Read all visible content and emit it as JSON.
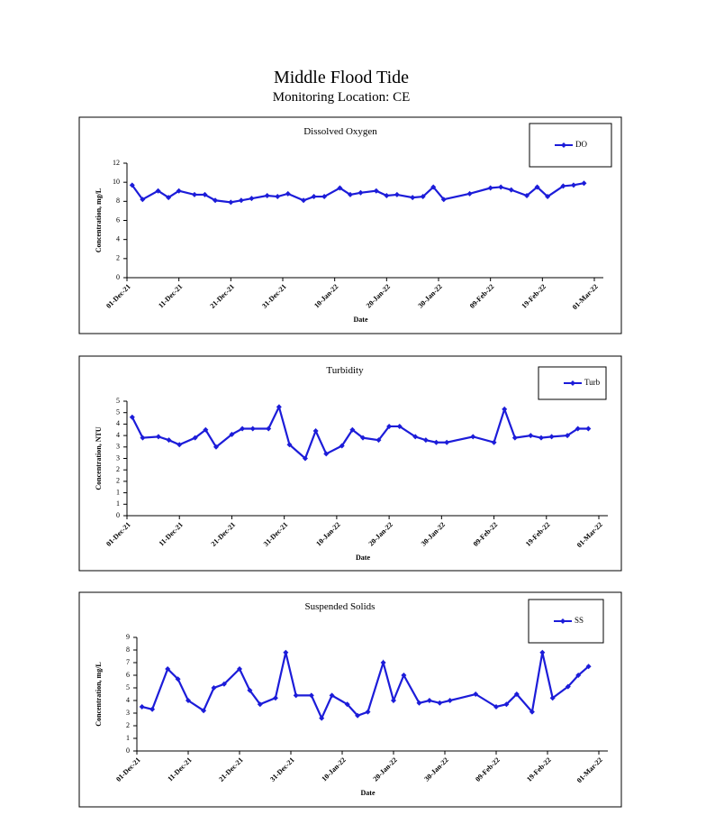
{
  "title": "Middle Flood Tide",
  "subtitle": "Monitoring Location: CE",
  "chart_data": [
    {
      "type": "line",
      "title": "Dissolved Oxygen",
      "xlabel": "Date",
      "ylabel": "Concentration, mg/L",
      "legend": "upper right",
      "grid": false,
      "x": [
        "2021-12-02",
        "2021-12-04",
        "2021-12-07",
        "2021-12-09",
        "2021-12-11",
        "2021-12-14",
        "2021-12-16",
        "2021-12-18",
        "2021-12-21",
        "2021-12-23",
        "2021-12-25",
        "2021-12-28",
        "2021-12-30",
        "2022-01-01",
        "2022-01-04",
        "2022-01-06",
        "2022-01-08",
        "2022-01-11",
        "2022-01-13",
        "2022-01-15",
        "2022-01-18",
        "2022-01-20",
        "2022-01-22",
        "2022-01-25",
        "2022-01-27",
        "2022-01-29",
        "2022-01-31",
        "2022-02-05",
        "2022-02-09",
        "2022-02-11",
        "2022-02-13",
        "2022-02-16",
        "2022-02-18",
        "2022-02-20",
        "2022-02-23",
        "2022-02-25",
        "2022-02-27"
      ],
      "series": [
        {
          "name": "DO",
          "color": "#1c1cd9",
          "values": [
            9.7,
            8.2,
            9.1,
            8.4,
            9.1,
            8.7,
            8.7,
            8.1,
            7.9,
            8.1,
            8.3,
            8.6,
            8.5,
            8.8,
            8.1,
            8.5,
            8.5,
            9.4,
            8.7,
            8.9,
            9.1,
            8.6,
            8.7,
            8.4,
            8.5,
            9.5,
            8.2,
            8.8,
            9.4,
            9.5,
            9.2,
            8.6,
            9.5,
            8.5,
            9.6,
            9.7,
            9.9
          ]
        }
      ],
      "xlim": [
        "2021-12-01",
        "2022-03-01"
      ],
      "xticks": [
        {
          "value": "2021-12-01",
          "label": "01-Dec-21"
        },
        {
          "value": "2021-12-11",
          "label": "11-Dec-21"
        },
        {
          "value": "2021-12-21",
          "label": "21-Dec-21"
        },
        {
          "value": "2021-12-31",
          "label": "31-Dec-21"
        },
        {
          "value": "2022-01-10",
          "label": "10-Jan-22"
        },
        {
          "value": "2022-01-20",
          "label": "20-Jan-22"
        },
        {
          "value": "2022-01-30",
          "label": "30-Jan-22"
        },
        {
          "value": "2022-02-09",
          "label": "09-Feb-22"
        },
        {
          "value": "2022-02-19",
          "label": "19-Feb-22"
        },
        {
          "value": "2022-03-01",
          "label": "01-Mar-22"
        }
      ],
      "ylim": [
        0,
        12
      ],
      "yticks": [
        0,
        2,
        4,
        6,
        8,
        10,
        12
      ]
    },
    {
      "type": "line",
      "title": "Turbidity",
      "xlabel": "Date",
      "ylabel": "Concentration, NTU",
      "legend": "upper right",
      "grid": false,
      "x": [
        "2021-12-02",
        "2021-12-04",
        "2021-12-07",
        "2021-12-09",
        "2021-12-11",
        "2021-12-14",
        "2021-12-16",
        "2021-12-18",
        "2021-12-21",
        "2021-12-23",
        "2021-12-25",
        "2021-12-28",
        "2021-12-30",
        "2022-01-01",
        "2022-01-04",
        "2022-01-06",
        "2022-01-08",
        "2022-01-11",
        "2022-01-13",
        "2022-01-15",
        "2022-01-18",
        "2022-01-20",
        "2022-01-22",
        "2022-01-25",
        "2022-01-27",
        "2022-01-29",
        "2022-01-31",
        "2022-02-05",
        "2022-02-09",
        "2022-02-11",
        "2022-02-13",
        "2022-02-16",
        "2022-02-18",
        "2022-02-20",
        "2022-02-23",
        "2022-02-25",
        "2022-02-27"
      ],
      "series": [
        {
          "name": "Turb",
          "color": "#1c1cd9",
          "values": [
            4.3,
            3.4,
            3.45,
            3.3,
            3.1,
            3.4,
            3.75,
            3.0,
            3.55,
            3.8,
            3.8,
            3.8,
            4.75,
            3.1,
            2.5,
            3.7,
            2.7,
            3.05,
            3.75,
            3.4,
            3.3,
            3.9,
            3.9,
            3.45,
            3.3,
            3.2,
            3.2,
            3.45,
            3.2,
            4.65,
            3.4,
            3.5,
            3.4,
            3.45,
            3.5,
            3.8,
            3.8
          ]
        }
      ],
      "xlim": [
        "2021-12-01",
        "2022-03-01"
      ],
      "xticks": [
        {
          "value": "2021-12-01",
          "label": "01-Dec-21"
        },
        {
          "value": "2021-12-11",
          "label": "11-Dec-21"
        },
        {
          "value": "2021-12-21",
          "label": "21-Dec-21"
        },
        {
          "value": "2021-12-31",
          "label": "31-Dec-21"
        },
        {
          "value": "2022-01-10",
          "label": "10-Jan-22"
        },
        {
          "value": "2022-01-20",
          "label": "20-Jan-22"
        },
        {
          "value": "2022-01-30",
          "label": "30-Jan-22"
        },
        {
          "value": "2022-02-09",
          "label": "09-Feb-22"
        },
        {
          "value": "2022-02-19",
          "label": "19-Feb-22"
        },
        {
          "value": "2022-03-01",
          "label": "01-Mar-22"
        }
      ],
      "ylim": [
        0,
        5
      ],
      "yticks": [
        0,
        {
          "value": 0.5,
          "label": "1"
        },
        1,
        {
          "value": 1.5,
          "label": "2"
        },
        2,
        {
          "value": 2.5,
          "label": "3"
        },
        3,
        {
          "value": 3.5,
          "label": "4"
        },
        4,
        {
          "value": 4.5,
          "label": "5"
        },
        5
      ]
    },
    {
      "type": "line",
      "title": "Suspended Solids",
      "xlabel": "Date",
      "ylabel": "Concentration, mg/L",
      "legend": "upper right",
      "grid": false,
      "x": [
        "2021-12-02",
        "2021-12-04",
        "2021-12-07",
        "2021-12-09",
        "2021-12-11",
        "2021-12-14",
        "2021-12-16",
        "2021-12-18",
        "2021-12-21",
        "2021-12-23",
        "2021-12-25",
        "2021-12-28",
        "2021-12-30",
        "2022-01-01",
        "2022-01-04",
        "2022-01-06",
        "2022-01-08",
        "2022-01-11",
        "2022-01-13",
        "2022-01-15",
        "2022-01-18",
        "2022-01-20",
        "2022-01-22",
        "2022-01-25",
        "2022-01-27",
        "2022-01-29",
        "2022-01-31",
        "2022-02-05",
        "2022-02-09",
        "2022-02-11",
        "2022-02-13",
        "2022-02-16",
        "2022-02-18",
        "2022-02-20",
        "2022-02-23",
        "2022-02-25",
        "2022-02-27"
      ],
      "series": [
        {
          "name": "SS",
          "color": "#1c1cd9",
          "values": [
            3.5,
            3.3,
            6.5,
            5.7,
            4.0,
            3.2,
            5.0,
            5.3,
            6.5,
            4.8,
            3.7,
            4.2,
            7.8,
            4.4,
            4.4,
            2.6,
            4.4,
            3.7,
            2.8,
            3.1,
            7.0,
            4.0,
            6.0,
            3.8,
            4.0,
            3.8,
            4.0,
            4.5,
            3.5,
            3.7,
            4.5,
            3.1,
            7.8,
            4.2,
            5.1,
            6.0,
            6.7
          ]
        }
      ],
      "xlim": [
        "2021-12-01",
        "2022-03-01"
      ],
      "xticks": [
        {
          "value": "2021-12-01",
          "label": "01-Dec-21"
        },
        {
          "value": "2021-12-11",
          "label": "11-Dec-21"
        },
        {
          "value": "2021-12-21",
          "label": "21-Dec-21"
        },
        {
          "value": "2021-12-31",
          "label": "31-Dec-21"
        },
        {
          "value": "2022-01-10",
          "label": "10-Jan-22"
        },
        {
          "value": "2022-01-20",
          "label": "20-Jan-22"
        },
        {
          "value": "2022-01-30",
          "label": "30-Jan-22"
        },
        {
          "value": "2022-02-09",
          "label": "09-Feb-22"
        },
        {
          "value": "2022-02-19",
          "label": "19-Feb-22"
        },
        {
          "value": "2022-03-01",
          "label": "01-Mar-22"
        }
      ],
      "ylim": [
        0,
        9
      ],
      "yticks": [
        0,
        1,
        2,
        3,
        4,
        5,
        6,
        7,
        8,
        9
      ]
    }
  ]
}
